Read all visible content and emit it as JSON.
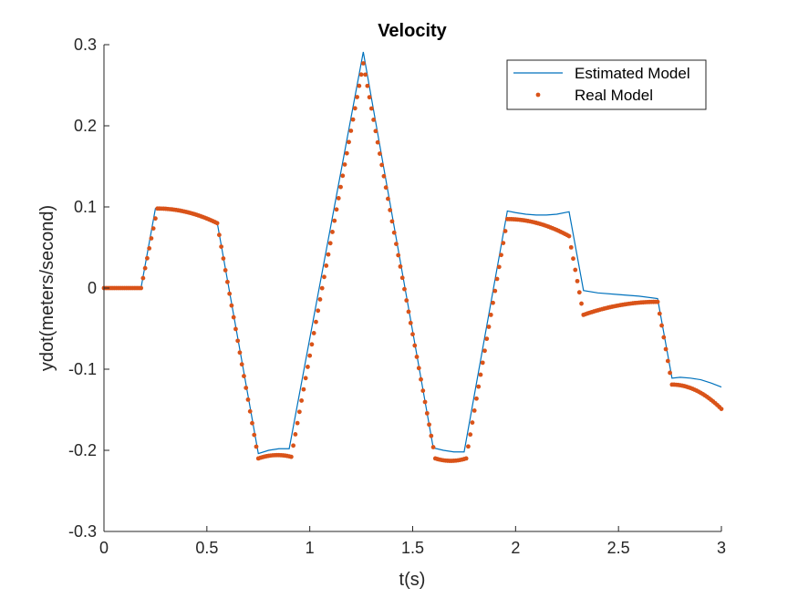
{
  "chart_data": {
    "type": "line",
    "title": "Velocity",
    "xlabel": "t(s)",
    "ylabel": "ydot(meters/second)",
    "xlim": [
      0,
      3
    ],
    "ylim": [
      -0.3,
      0.3
    ],
    "xticks": [
      0,
      0.5,
      1,
      1.5,
      2,
      2.5,
      3
    ],
    "xtick_labels": [
      "0",
      "0.5",
      "1",
      "1.5",
      "2",
      "2.5",
      "3"
    ],
    "yticks": [
      -0.3,
      -0.2,
      -0.1,
      0,
      0.1,
      0.2,
      0.3
    ],
    "ytick_labels": [
      "-0.3",
      "-0.2",
      "-0.1",
      "0",
      "0.1",
      "0.2",
      "0.3"
    ],
    "grid": false,
    "legend_location": "top-right",
    "series": [
      {
        "name": "Estimated Model",
        "style": "line",
        "color": "#0072BD",
        "x": [
          0,
          0.18,
          0.25,
          0.3,
          0.35,
          0.4,
          0.45,
          0.5,
          0.55,
          0.75,
          0.8,
          0.85,
          0.9,
          1.26,
          1.6,
          1.65,
          1.7,
          1.75,
          1.96,
          2.0,
          2.05,
          2.1,
          2.15,
          2.2,
          2.26,
          2.33,
          2.4,
          2.5,
          2.6,
          2.69,
          2.76,
          2.8,
          2.85,
          2.9,
          2.95,
          3.0
        ],
        "y": [
          0,
          0,
          0.098,
          0.098,
          0.097,
          0.095,
          0.092,
          0.087,
          0.081,
          -0.204,
          -0.2,
          -0.198,
          -0.198,
          0.291,
          -0.197,
          -0.2,
          -0.202,
          -0.202,
          0.095,
          0.093,
          0.091,
          0.09,
          0.09,
          0.091,
          0.094,
          -0.003,
          -0.006,
          -0.008,
          -0.01,
          -0.013,
          -0.111,
          -0.11,
          -0.111,
          -0.113,
          -0.117,
          -0.122
        ]
      },
      {
        "name": "Real Model",
        "style": "dots",
        "color": "#D95319",
        "marker_step": 0.01,
        "segments": [
          {
            "x": [
              0,
              0.18
            ],
            "y": [
              0,
              0
            ],
            "shape": "linear"
          },
          {
            "x": [
              0.18,
              0.26
            ],
            "y": [
              0,
              0.098
            ],
            "shape": "linear"
          },
          {
            "x": [
              0.26,
              0.55
            ],
            "y": [
              0.098,
              0.08
            ],
            "shape": "concave"
          },
          {
            "x": [
              0.55,
              0.75
            ],
            "y": [
              0.08,
              -0.21
            ],
            "shape": "linear"
          },
          {
            "x": [
              0.75,
              0.91
            ],
            "y": [
              -0.21,
              -0.208
            ],
            "shape": "arc",
            "peak": -0.206
          },
          {
            "x": [
              0.91,
              1.26
            ],
            "y": [
              -0.208,
              0.277
            ],
            "shape": "linear"
          },
          {
            "x": [
              1.26,
              1.61
            ],
            "y": [
              0.277,
              -0.21
            ],
            "shape": "linear"
          },
          {
            "x": [
              1.61,
              1.76
            ],
            "y": [
              -0.21,
              -0.21
            ],
            "shape": "arc",
            "peak": -0.213
          },
          {
            "x": [
              1.76,
              1.96
            ],
            "y": [
              -0.21,
              0.085
            ],
            "shape": "linear"
          },
          {
            "x": [
              1.96,
              2.26
            ],
            "y": [
              0.085,
              0.064
            ],
            "shape": "concave"
          },
          {
            "x": [
              2.26,
              2.33
            ],
            "y": [
              0.064,
              -0.033
            ],
            "shape": "linear"
          },
          {
            "x": [
              2.33,
              2.69
            ],
            "y": [
              -0.033,
              -0.017
            ],
            "shape": "convex"
          },
          {
            "x": [
              2.69,
              2.76
            ],
            "y": [
              -0.017,
              -0.119
            ],
            "shape": "linear"
          },
          {
            "x": [
              2.76,
              3.0
            ],
            "y": [
              -0.119,
              -0.149
            ],
            "shape": "concave"
          }
        ]
      }
    ]
  }
}
